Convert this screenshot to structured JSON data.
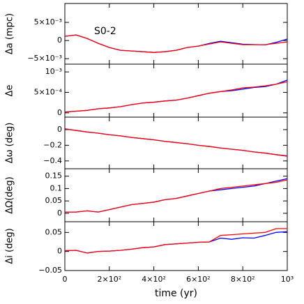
{
  "chart_data": [
    {
      "type": "line",
      "ylabel": "Δa (mpc)",
      "annotation": "S0-2",
      "x": [
        0,
        50,
        100,
        150,
        200,
        250,
        300,
        350,
        400,
        450,
        500,
        550,
        600,
        650,
        700,
        750,
        800,
        850,
        900,
        950,
        1000
      ],
      "xlim": [
        0,
        1000
      ],
      "ylim": [
        -0.0065,
        0.0102
      ],
      "yticks": [
        {
          "value": 0.005,
          "label": "5×10⁻³"
        },
        0,
        {
          "value": -0.005,
          "label": "−5×10⁻³"
        }
      ],
      "series": [
        {
          "color": "#0000ff",
          "values": [
            0.00115,
            0.00154,
            0.00058,
            -0.00077,
            -0.00192,
            -0.00269,
            -0.00288,
            -0.00308,
            -0.00327,
            -0.00308,
            -0.00269,
            -0.00192,
            -0.00154,
            -0.0008,
            -0.0002,
            -0.0006,
            -0.001,
            -0.0011,
            -0.0012,
            -0.0005,
            0.0004
          ]
        },
        {
          "color": "#ff0000",
          "values": [
            0.00115,
            0.00154,
            0.00058,
            -0.00077,
            -0.00192,
            -0.00269,
            -0.00288,
            -0.00308,
            -0.00327,
            -0.00308,
            -0.00269,
            -0.00192,
            -0.00154,
            -0.00096,
            -0.00038,
            -0.00077,
            -0.00115,
            -0.00115,
            -0.00115,
            -0.00077,
            -0.00038
          ]
        }
      ]
    },
    {
      "type": "line",
      "ylabel": "Δe",
      "x": [
        0,
        50,
        100,
        150,
        200,
        250,
        300,
        350,
        400,
        450,
        500,
        550,
        600,
        650,
        700,
        750,
        800,
        850,
        900,
        950,
        1000
      ],
      "xlim": [
        0,
        1000
      ],
      "ylim": [
        -0.000105,
        0.00119
      ],
      "yticks": [
        {
          "value": 0.001,
          "label": "10⁻³"
        },
        {
          "value": 0.0005,
          "label": "5×10⁻⁴"
        },
        0
      ],
      "series": [
        {
          "color": "#0000ff",
          "values": [
            2e-05,
            4e-05,
            6e-05,
            0.0001,
            0.00012,
            0.00015,
            0.0002,
            0.00024,
            0.00026,
            0.00029,
            0.00031,
            0.00036,
            0.00042,
            0.00048,
            0.00052,
            0.00054,
            0.00058,
            0.00062,
            0.00064,
            0.0007,
            0.0008
          ]
        },
        {
          "color": "#ff0000",
          "values": [
            2e-05,
            4e-05,
            6e-05,
            0.0001,
            0.00012,
            0.00015,
            0.0002,
            0.00024,
            0.00026,
            0.00029,
            0.00031,
            0.00036,
            0.00042,
            0.00048,
            0.00052,
            0.00056,
            0.00061,
            0.00063,
            0.00066,
            0.0007,
            0.00076
          ]
        }
      ]
    },
    {
      "type": "line",
      "ylabel": "Δω (deg)",
      "x": [
        0,
        50,
        100,
        150,
        200,
        250,
        300,
        350,
        400,
        450,
        500,
        550,
        600,
        650,
        700,
        750,
        800,
        850,
        900,
        950,
        1000
      ],
      "xlim": [
        0,
        1000
      ],
      "ylim": [
        -0.5,
        0.16
      ],
      "yticks": [
        0,
        {
          "value": -0.2,
          "label": "−0.2"
        },
        {
          "value": -0.4,
          "label": "−0.4"
        }
      ],
      "series": [
        {
          "color": "#0000ff",
          "values": [
            0.01,
            -0.01,
            -0.03,
            -0.045,
            -0.065,
            -0.08,
            -0.1,
            -0.115,
            -0.13,
            -0.15,
            -0.165,
            -0.18,
            -0.2,
            -0.215,
            -0.235,
            -0.25,
            -0.265,
            -0.285,
            -0.3,
            -0.32,
            -0.335
          ]
        },
        {
          "color": "#ff0000",
          "values": [
            0.01,
            -0.01,
            -0.03,
            -0.045,
            -0.065,
            -0.08,
            -0.1,
            -0.115,
            -0.13,
            -0.15,
            -0.165,
            -0.18,
            -0.2,
            -0.215,
            -0.235,
            -0.25,
            -0.265,
            -0.285,
            -0.3,
            -0.32,
            -0.34
          ]
        }
      ]
    },
    {
      "type": "line",
      "ylabel": "ΔΩ(deg)",
      "x": [
        0,
        50,
        100,
        150,
        200,
        250,
        300,
        350,
        400,
        450,
        500,
        550,
        600,
        650,
        700,
        750,
        800,
        850,
        900,
        950,
        1000
      ],
      "xlim": [
        0,
        1000
      ],
      "ylim": [
        -0.034,
        0.18
      ],
      "yticks": [
        0.15,
        0.1,
        0.05,
        0
      ],
      "series": [
        {
          "color": "#0000ff",
          "values": [
            0.005,
            0.005,
            0.01,
            0.005,
            0.015,
            0.025,
            0.035,
            0.04,
            0.045,
            0.055,
            0.06,
            0.07,
            0.08,
            0.09,
            0.095,
            0.1,
            0.105,
            0.11,
            0.12,
            0.13,
            0.14
          ]
        },
        {
          "color": "#ff0000",
          "values": [
            0.005,
            0.005,
            0.01,
            0.005,
            0.015,
            0.025,
            0.035,
            0.04,
            0.045,
            0.055,
            0.06,
            0.07,
            0.08,
            0.09,
            0.1,
            0.105,
            0.11,
            0.115,
            0.12,
            0.125,
            0.135
          ]
        }
      ]
    },
    {
      "type": "line",
      "ylabel": "Δi (deg)",
      "xlabel": "time (yr)",
      "x": [
        0,
        50,
        100,
        150,
        200,
        250,
        300,
        350,
        400,
        450,
        500,
        550,
        600,
        650,
        700,
        750,
        800,
        850,
        900,
        950,
        1000
      ],
      "xlim": [
        0,
        1000
      ],
      "ylim": [
        -0.05,
        0.078
      ],
      "xticks": [
        0,
        {
          "value": 200,
          "label": "2×10²"
        },
        {
          "value": 400,
          "label": "4×10²"
        },
        {
          "value": 600,
          "label": "6×10²"
        },
        {
          "value": 800,
          "label": "8×10²"
        },
        {
          "value": 1000,
          "label": "10³"
        }
      ],
      "yticks": [
        0.05,
        0,
        {
          "value": -0.05,
          "label": "−0.05"
        }
      ],
      "series": [
        {
          "color": "#0000ff",
          "values": [
            0.002,
            0.003,
            -0.004,
            0,
            0.001,
            0.003,
            0.006,
            0.01,
            0.012,
            0.018,
            0.02,
            0.022,
            0.024,
            0.025,
            0.035,
            0.032,
            0.036,
            0.035,
            0.042,
            0.05,
            0.052
          ]
        },
        {
          "color": "#ff0000",
          "values": [
            0.002,
            0.003,
            -0.004,
            0,
            0.001,
            0.003,
            0.006,
            0.01,
            0.012,
            0.018,
            0.02,
            0.022,
            0.024,
            0.025,
            0.042,
            0.044,
            0.046,
            0.048,
            0.05,
            0.06,
            0.06
          ]
        }
      ]
    }
  ]
}
